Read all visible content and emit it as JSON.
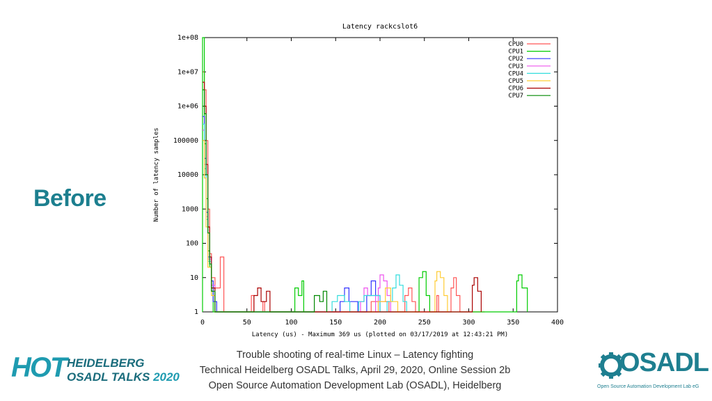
{
  "slide": {
    "label": "Before",
    "footer_line1": "Trouble shooting of real-time Linux – Latency fighting",
    "footer_line2": "Technical Heidelberg OSADL Talks, April 29, 2020, Online Session 2b",
    "footer_line3": "Open Source Automation Development Lab (OSADL), Heidelberg",
    "hot_logo": {
      "mark": "HOT",
      "line1": "HEIDELBERG",
      "line2": "OSADL TALKS",
      "year": "2020"
    },
    "osadl_logo": {
      "word": "OSADL",
      "sub": "Open Source Automation Development Lab eG"
    }
  },
  "chart_data": {
    "type": "line",
    "title": "Latency rackcslot6",
    "xlabel": "Latency (us) - Maximum 369 us (plotted on 03/17/2019 at 12:43:21 PM)",
    "ylabel": "Number of latency samples",
    "xlim": [
      0,
      400
    ],
    "ylim": [
      1,
      100000000
    ],
    "yscale": "log",
    "xticks": [
      0,
      50,
      100,
      150,
      200,
      250,
      300,
      350,
      400
    ],
    "yticks": [
      "1",
      "10",
      "100",
      "1000",
      "10000",
      "100000",
      "1e+06",
      "1e+07",
      "1e+08"
    ],
    "legend_position": "top-right",
    "series": [
      {
        "name": "CPU0",
        "color": "#ff5555",
        "points": [
          [
            0,
            10000000
          ],
          [
            2,
            3000000
          ],
          [
            4,
            100000
          ],
          [
            6,
            1000
          ],
          [
            8,
            50
          ],
          [
            10,
            10
          ],
          [
            14,
            5
          ],
          [
            20,
            40
          ],
          [
            24,
            1
          ],
          [
            52,
            1
          ],
          [
            55,
            3
          ],
          [
            58,
            1
          ],
          [
            68,
            2
          ],
          [
            70,
            1
          ],
          [
            185,
            1
          ],
          [
            190,
            2
          ],
          [
            210,
            1
          ],
          [
            228,
            3
          ],
          [
            232,
            5
          ],
          [
            236,
            2
          ],
          [
            240,
            1
          ],
          [
            262,
            1
          ],
          [
            264,
            3
          ],
          [
            266,
            1
          ],
          [
            280,
            5
          ],
          [
            283,
            10
          ],
          [
            286,
            3
          ],
          [
            290,
            1
          ],
          [
            318,
            1
          ]
        ]
      },
      {
        "name": "CPU1",
        "color": "#00cc00",
        "points": [
          [
            0,
            1
          ],
          [
            0,
            100000000
          ],
          [
            2,
            80000
          ],
          [
            4,
            2000
          ],
          [
            6,
            60
          ],
          [
            8,
            20
          ],
          [
            10,
            4
          ],
          [
            12,
            1
          ],
          [
            88,
            1
          ],
          [
            102,
            1
          ],
          [
            104,
            5
          ],
          [
            108,
            3
          ],
          [
            112,
            8
          ],
          [
            114,
            1
          ],
          [
            150,
            1
          ],
          [
            240,
            1
          ],
          [
            244,
            10
          ],
          [
            248,
            15
          ],
          [
            252,
            3
          ],
          [
            256,
            1
          ],
          [
            350,
            1
          ],
          [
            354,
            8
          ],
          [
            356,
            12
          ],
          [
            360,
            5
          ],
          [
            366,
            1
          ]
        ]
      },
      {
        "name": "CPU2",
        "color": "#3333ff",
        "points": [
          [
            0,
            500000
          ],
          [
            2,
            30000
          ],
          [
            4,
            800
          ],
          [
            6,
            40
          ],
          [
            10,
            8
          ],
          [
            12,
            2
          ],
          [
            16,
            1
          ],
          [
            150,
            1
          ],
          [
            155,
            2
          ],
          [
            160,
            5
          ],
          [
            165,
            2
          ],
          [
            175,
            1
          ],
          [
            185,
            3
          ],
          [
            190,
            8
          ],
          [
            195,
            3
          ],
          [
            200,
            1
          ]
        ]
      },
      {
        "name": "CPU3",
        "color": "#ee55ee",
        "points": [
          [
            0,
            200000
          ],
          [
            2,
            20000
          ],
          [
            4,
            600
          ],
          [
            6,
            35
          ],
          [
            10,
            6
          ],
          [
            14,
            1
          ],
          [
            170,
            1
          ],
          [
            178,
            2
          ],
          [
            182,
            5
          ],
          [
            186,
            3
          ],
          [
            195,
            1
          ],
          [
            198,
            5
          ],
          [
            200,
            12
          ],
          [
            204,
            8
          ],
          [
            208,
            3
          ],
          [
            212,
            1
          ]
        ]
      },
      {
        "name": "CPU4",
        "color": "#33dddd",
        "points": [
          [
            0,
            300000
          ],
          [
            2,
            15000
          ],
          [
            4,
            500
          ],
          [
            6,
            30
          ],
          [
            10,
            5
          ],
          [
            14,
            1
          ],
          [
            140,
            1
          ],
          [
            146,
            2
          ],
          [
            152,
            3
          ],
          [
            160,
            2
          ],
          [
            166,
            1
          ],
          [
            176,
            2
          ],
          [
            182,
            3
          ],
          [
            200,
            1
          ],
          [
            208,
            2
          ],
          [
            214,
            5
          ],
          [
            218,
            12
          ],
          [
            222,
            6
          ],
          [
            226,
            2
          ],
          [
            230,
            1
          ]
        ]
      },
      {
        "name": "CPU5",
        "color": "#ffcc33",
        "points": [
          [
            0,
            100000
          ],
          [
            2,
            8000
          ],
          [
            4,
            300
          ],
          [
            6,
            20
          ],
          [
            10,
            3
          ],
          [
            14,
            1
          ],
          [
            192,
            1
          ],
          [
            198,
            2
          ],
          [
            206,
            5
          ],
          [
            212,
            2
          ],
          [
            220,
            1
          ],
          [
            258,
            1
          ],
          [
            262,
            8
          ],
          [
            264,
            15
          ],
          [
            268,
            10
          ],
          [
            272,
            3
          ],
          [
            276,
            1
          ]
        ]
      },
      {
        "name": "CPU6",
        "color": "#aa0000",
        "points": [
          [
            0,
            5000000
          ],
          [
            2,
            1000000
          ],
          [
            4,
            20000
          ],
          [
            6,
            300
          ],
          [
            8,
            40
          ],
          [
            10,
            5
          ],
          [
            14,
            1
          ],
          [
            50,
            1
          ],
          [
            58,
            3
          ],
          [
            62,
            5
          ],
          [
            66,
            2
          ],
          [
            72,
            4
          ],
          [
            76,
            1
          ],
          [
            300,
            1
          ],
          [
            304,
            6
          ],
          [
            306,
            10
          ],
          [
            310,
            4
          ],
          [
            314,
            1
          ]
        ]
      },
      {
        "name": "CPU7",
        "color": "#008800",
        "points": [
          [
            0,
            3000000
          ],
          [
            2,
            600000
          ],
          [
            4,
            10000
          ],
          [
            6,
            200
          ],
          [
            8,
            25
          ],
          [
            10,
            4
          ],
          [
            14,
            1
          ],
          [
            120,
            1
          ],
          [
            126,
            3
          ],
          [
            132,
            2
          ],
          [
            136,
            4
          ],
          [
            140,
            1
          ]
        ]
      }
    ]
  }
}
